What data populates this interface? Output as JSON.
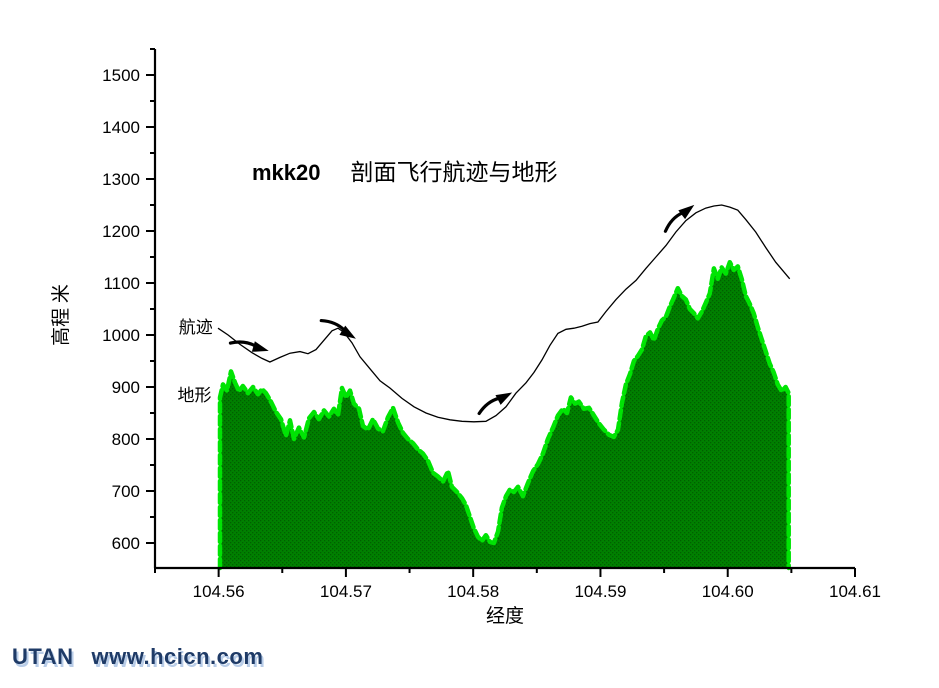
{
  "title": {
    "prefix": "mkk20",
    "main": "剖面飞行航迹与地形"
  },
  "footer": {
    "brand": "UTAN",
    "url": "www.hcicn.com",
    "color": "#1f3b67"
  },
  "chart_data": {
    "type": "area+line",
    "title": "mkk20  剖面飞行航迹与地形",
    "xlabel": "经度",
    "ylabel": "高程 米",
    "xlim": [
      104.555,
      104.61
    ],
    "ylim": [
      550,
      1550
    ],
    "grid": false,
    "x_major_ticks": [
      104.56,
      104.57,
      104.58,
      104.59,
      104.6,
      104.61
    ],
    "x_tick_labels": [
      "104.56",
      "104.57",
      "104.58",
      "104.59",
      "104.60",
      "104.61"
    ],
    "x_minor_ticks": [
      104.555,
      104.565,
      104.575,
      104.585,
      104.595,
      104.605
    ],
    "y_major_ticks": [
      600,
      700,
      800,
      900,
      1000,
      1100,
      1200,
      1300,
      1400,
      1500
    ],
    "y_minor_ticks": [
      650,
      750,
      850,
      950,
      1050,
      1150,
      1250,
      1350,
      1450,
      1550
    ],
    "annotations": [
      {
        "id": "hangji",
        "text": "航迹",
        "lon": 104.5582,
        "elev": 1015
      },
      {
        "id": "dixing",
        "text": "地形",
        "lon": 104.5581,
        "elev": 885
      }
    ],
    "colors": {
      "axis": "#000000",
      "path_line": "#000000",
      "terrain_fill": "#008000",
      "terrain_fill_dot": "#005f00",
      "terrain_outline": "#00e404"
    },
    "arrows": [
      {
        "lon": 104.56341,
        "elev": 973,
        "angle": 16
      },
      {
        "lon": 104.57032,
        "elev": 1000,
        "angle": 32
      },
      {
        "lon": 104.58258,
        "elev": 883,
        "angle": -28
      },
      {
        "lon": 104.59694,
        "elev": 1242,
        "angle": -38
      }
    ],
    "series": [
      {
        "name": "航迹",
        "type": "line",
        "points": [
          [
            104.55995,
            1013
          ],
          [
            104.56074,
            1000
          ],
          [
            104.56168,
            982
          ],
          [
            104.56262,
            966
          ],
          [
            104.56341,
            955
          ],
          [
            104.56403,
            948
          ],
          [
            104.56482,
            957
          ],
          [
            104.56561,
            965
          ],
          [
            104.56639,
            968
          ],
          [
            104.56702,
            964
          ],
          [
            104.56765,
            972
          ],
          [
            104.56828,
            990
          ],
          [
            104.56891,
            1008
          ],
          [
            104.56938,
            1013
          ],
          [
            104.56985,
            1005
          ],
          [
            104.57048,
            985
          ],
          [
            104.57111,
            958
          ],
          [
            104.57189,
            935
          ],
          [
            104.57268,
            912
          ],
          [
            104.57346,
            898
          ],
          [
            104.57441,
            878
          ],
          [
            104.57535,
            862
          ],
          [
            104.57629,
            850
          ],
          [
            104.57723,
            842
          ],
          [
            104.57818,
            837
          ],
          [
            104.57912,
            834
          ],
          [
            104.58006,
            833
          ],
          [
            104.581,
            834
          ],
          [
            104.58179,
            845
          ],
          [
            104.58258,
            862
          ],
          [
            104.58336,
            888
          ],
          [
            104.58415,
            908
          ],
          [
            104.58478,
            928
          ],
          [
            104.5854,
            952
          ],
          [
            104.58603,
            980
          ],
          [
            104.58666,
            1003
          ],
          [
            104.58729,
            1011
          ],
          [
            104.58792,
            1013
          ],
          [
            104.58855,
            1017
          ],
          [
            104.58917,
            1022
          ],
          [
            104.5898,
            1025
          ],
          [
            104.59043,
            1045
          ],
          [
            104.59122,
            1068
          ],
          [
            104.592,
            1088
          ],
          [
            104.59279,
            1105
          ],
          [
            104.59357,
            1128
          ],
          [
            104.59436,
            1150
          ],
          [
            104.59514,
            1172
          ],
          [
            104.59593,
            1198
          ],
          [
            104.59671,
            1220
          ],
          [
            104.5975,
            1235
          ],
          [
            104.59828,
            1244
          ],
          [
            104.59891,
            1248
          ],
          [
            104.59953,
            1250
          ],
          [
            104.60016,
            1246
          ],
          [
            104.60079,
            1240
          ],
          [
            104.60142,
            1222
          ],
          [
            104.6022,
            1198
          ],
          [
            104.60299,
            1168
          ],
          [
            104.60377,
            1140
          ],
          [
            104.60487,
            1108
          ]
        ]
      },
      {
        "name": "地形",
        "type": "area",
        "baseline": 552,
        "points": [
          [
            104.56011,
            880
          ],
          [
            104.56034,
            905
          ],
          [
            104.56066,
            893
          ],
          [
            104.56097,
            930
          ],
          [
            104.56129,
            908
          ],
          [
            104.5616,
            892
          ],
          [
            104.56191,
            902
          ],
          [
            104.56231,
            888
          ],
          [
            104.5627,
            900
          ],
          [
            104.56309,
            886
          ],
          [
            104.56341,
            896
          ],
          [
            104.56372,
            888
          ],
          [
            104.56411,
            872
          ],
          [
            104.56451,
            852
          ],
          [
            104.5649,
            838
          ],
          [
            104.56529,
            806
          ],
          [
            104.56561,
            836
          ],
          [
            104.56592,
            800
          ],
          [
            104.56631,
            822
          ],
          [
            104.56671,
            803
          ],
          [
            104.5671,
            840
          ],
          [
            104.56749,
            852
          ],
          [
            104.56788,
            838
          ],
          [
            104.56828,
            855
          ],
          [
            104.56867,
            843
          ],
          [
            104.56906,
            858
          ],
          [
            104.56938,
            846
          ],
          [
            104.56969,
            898
          ],
          [
            104.57001,
            880
          ],
          [
            104.57032,
            893
          ],
          [
            104.57063,
            868
          ],
          [
            104.57103,
            858
          ],
          [
            104.57134,
            825
          ],
          [
            104.57173,
            818
          ],
          [
            104.57213,
            838
          ],
          [
            104.57252,
            820
          ],
          [
            104.57291,
            815
          ],
          [
            104.57331,
            842
          ],
          [
            104.5737,
            860
          ],
          [
            104.57409,
            832
          ],
          [
            104.57448,
            812
          ],
          [
            104.57488,
            800
          ],
          [
            104.57527,
            792
          ],
          [
            104.57566,
            780
          ],
          [
            104.57606,
            772
          ],
          [
            104.57645,
            758
          ],
          [
            104.57684,
            735
          ],
          [
            104.57723,
            728
          ],
          [
            104.57763,
            718
          ],
          [
            104.57802,
            738
          ],
          [
            104.57833,
            708
          ],
          [
            104.57873,
            698
          ],
          [
            104.57912,
            686
          ],
          [
            104.57943,
            673
          ],
          [
            104.57975,
            650
          ],
          [
            104.58006,
            628
          ],
          [
            104.58038,
            612
          ],
          [
            104.58069,
            604
          ],
          [
            104.581,
            615
          ],
          [
            104.58132,
            602
          ],
          [
            104.58163,
            600
          ],
          [
            104.58195,
            622
          ],
          [
            104.58226,
            668
          ],
          [
            104.58258,
            690
          ],
          [
            104.58289,
            703
          ],
          [
            104.5832,
            698
          ],
          [
            104.58352,
            708
          ],
          [
            104.58391,
            690
          ],
          [
            104.5843,
            715
          ],
          [
            104.5847,
            738
          ],
          [
            104.58509,
            752
          ],
          [
            104.58548,
            772
          ],
          [
            104.58587,
            800
          ],
          [
            104.58627,
            822
          ],
          [
            104.58666,
            845
          ],
          [
            104.58705,
            858
          ],
          [
            104.58737,
            850
          ],
          [
            104.58768,
            880
          ],
          [
            104.588,
            868
          ],
          [
            104.58831,
            872
          ],
          [
            104.5887,
            858
          ],
          [
            104.5891,
            860
          ],
          [
            104.58949,
            845
          ],
          [
            104.58988,
            830
          ],
          [
            104.59027,
            818
          ],
          [
            104.59067,
            808
          ],
          [
            104.59106,
            804
          ],
          [
            104.59138,
            818
          ],
          [
            104.59169,
            870
          ],
          [
            104.592,
            905
          ],
          [
            104.59232,
            925
          ],
          [
            104.59263,
            950
          ],
          [
            104.59295,
            960
          ],
          [
            104.59326,
            972
          ],
          [
            104.59357,
            998
          ],
          [
            104.59389,
            1005
          ],
          [
            104.5942,
            990
          ],
          [
            104.59451,
            1012
          ],
          [
            104.59483,
            1028
          ],
          [
            104.59514,
            1035
          ],
          [
            104.59546,
            1055
          ],
          [
            104.59577,
            1072
          ],
          [
            104.59608,
            1090
          ],
          [
            104.5964,
            1075
          ],
          [
            104.59671,
            1068
          ],
          [
            104.59702,
            1050
          ],
          [
            104.59734,
            1042
          ],
          [
            104.59765,
            1032
          ],
          [
            104.59797,
            1045
          ],
          [
            104.59828,
            1062
          ],
          [
            104.59859,
            1080
          ],
          [
            104.59891,
            1128
          ],
          [
            104.59922,
            1108
          ],
          [
            104.59953,
            1130
          ],
          [
            104.59985,
            1118
          ],
          [
            104.60016,
            1140
          ],
          [
            104.60048,
            1125
          ],
          [
            104.60079,
            1132
          ],
          [
            104.6011,
            1108
          ],
          [
            104.60142,
            1075
          ],
          [
            104.60173,
            1060
          ],
          [
            104.60204,
            1042
          ],
          [
            104.60236,
            1015
          ],
          [
            104.60267,
            992
          ],
          [
            104.60299,
            968
          ],
          [
            104.6033,
            945
          ],
          [
            104.60361,
            928
          ],
          [
            104.60393,
            905
          ],
          [
            104.60424,
            892
          ],
          [
            104.60455,
            900
          ],
          [
            104.60479,
            888
          ]
        ]
      }
    ]
  }
}
